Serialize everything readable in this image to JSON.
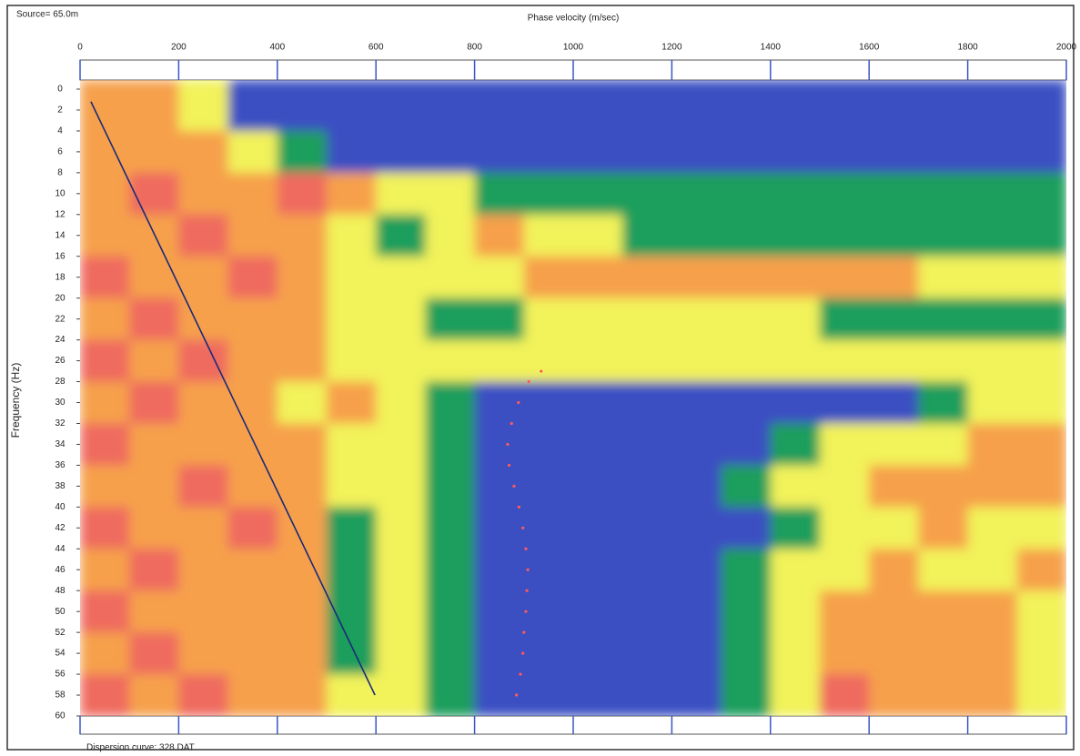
{
  "chart_data": {
    "type": "heatmap",
    "source_label": "Source= 65.0m",
    "x_label": "Phase velocity (m/sec)",
    "y_label": "Frequency (Hz)",
    "footer": "Dispersion curve: 328.DAT",
    "xlim": [
      0,
      2000
    ],
    "xticks": [
      0,
      200,
      400,
      600,
      800,
      1000,
      1200,
      1400,
      1600,
      1800,
      2000
    ],
    "ylim": [
      0,
      60
    ],
    "y_inverted": true,
    "yticks": [
      0,
      2,
      4,
      6,
      8,
      10,
      12,
      14,
      16,
      18,
      20,
      22,
      24,
      26,
      28,
      30,
      32,
      34,
      36,
      38,
      40,
      42,
      44,
      46,
      48,
      50,
      52,
      54,
      56,
      58,
      60
    ],
    "x_edges": [
      0,
      100,
      200,
      300,
      400,
      500,
      600,
      700,
      800,
      900,
      1000,
      1100,
      1200,
      1300,
      1400,
      1500,
      1600,
      1700,
      1800,
      1900,
      2000
    ],
    "y_edges": [
      0,
      4,
      8,
      12,
      16,
      20,
      24,
      28,
      32,
      36,
      40,
      44,
      48,
      52,
      56,
      60
    ],
    "colors": [
      "#3b4fc2",
      "#1f9e5c",
      "#f2f25a",
      "#f6a04c",
      "#ef6a5e"
    ],
    "z": [
      [
        3,
        3,
        2,
        0,
        0,
        0,
        0,
        0,
        0,
        0,
        0,
        0,
        0,
        0,
        0,
        0,
        0,
        0,
        0,
        0
      ],
      [
        3,
        3,
        3,
        2,
        1,
        0,
        0,
        0,
        0,
        0,
        0,
        0,
        0,
        0,
        0,
        0,
        0,
        0,
        0,
        0
      ],
      [
        3,
        4,
        3,
        3,
        4,
        3,
        2,
        2,
        1,
        1,
        1,
        1,
        1,
        1,
        1,
        1,
        1,
        1,
        1,
        1
      ],
      [
        3,
        3,
        4,
        3,
        3,
        2,
        1,
        2,
        3,
        2,
        2,
        1,
        1,
        1,
        1,
        1,
        1,
        1,
        1,
        1
      ],
      [
        4,
        3,
        3,
        4,
        3,
        2,
        2,
        2,
        2,
        3,
        3,
        3,
        3,
        3,
        3,
        3,
        3,
        2,
        2,
        2
      ],
      [
        3,
        4,
        3,
        3,
        3,
        2,
        2,
        1,
        1,
        2,
        2,
        2,
        2,
        2,
        2,
        1,
        1,
        1,
        1,
        1
      ],
      [
        4,
        3,
        4,
        3,
        3,
        2,
        2,
        2,
        2,
        2,
        2,
        2,
        2,
        2,
        2,
        2,
        2,
        2,
        2,
        2
      ],
      [
        3,
        4,
        3,
        3,
        2,
        3,
        2,
        1,
        0,
        0,
        0,
        0,
        0,
        0,
        0,
        0,
        0,
        1,
        2,
        2
      ],
      [
        4,
        3,
        3,
        3,
        3,
        2,
        2,
        1,
        0,
        0,
        0,
        0,
        0,
        0,
        1,
        2,
        2,
        2,
        3,
        3
      ],
      [
        3,
        3,
        4,
        3,
        3,
        2,
        2,
        1,
        0,
        0,
        0,
        0,
        0,
        1,
        2,
        2,
        3,
        3,
        3,
        3
      ],
      [
        4,
        3,
        3,
        4,
        3,
        1,
        2,
        1,
        0,
        0,
        0,
        0,
        0,
        0,
        1,
        2,
        2,
        3,
        2,
        2
      ],
      [
        3,
        4,
        3,
        3,
        3,
        1,
        2,
        1,
        0,
        0,
        0,
        0,
        0,
        1,
        2,
        2,
        3,
        2,
        2,
        3
      ],
      [
        4,
        3,
        3,
        3,
        3,
        1,
        2,
        1,
        0,
        0,
        0,
        0,
        0,
        1,
        2,
        3,
        3,
        3,
        3,
        2
      ],
      [
        3,
        4,
        3,
        3,
        3,
        1,
        2,
        1,
        0,
        0,
        0,
        0,
        0,
        1,
        2,
        3,
        3,
        3,
        3,
        2
      ],
      [
        4,
        3,
        4,
        3,
        3,
        2,
        2,
        1,
        0,
        0,
        0,
        0,
        0,
        1,
        2,
        4,
        3,
        3,
        3,
        2
      ]
    ],
    "curve": {
      "color": "#ff5a5a",
      "x": [
        935,
        910,
        889,
        875,
        867,
        870,
        880,
        890,
        898,
        904,
        908,
        906,
        904,
        900,
        898,
        893,
        885
      ],
      "y": [
        27,
        28,
        30,
        32,
        34,
        36,
        38,
        40,
        42,
        44,
        46,
        48,
        50,
        52,
        54,
        56,
        58
      ]
    },
    "line": {
      "color": "#1a2a7a",
      "x": [
        22,
        598
      ],
      "y": [
        1.2,
        58
      ]
    }
  }
}
